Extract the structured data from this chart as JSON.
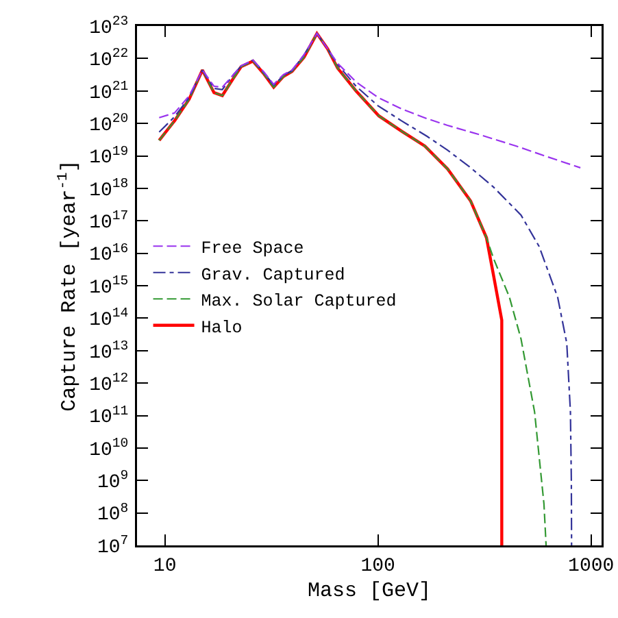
{
  "chart_data": {
    "type": "line",
    "xlabel": "Mass [GeV]",
    "ylabel": "Capture Rate [year$^{-1}$]",
    "log": "xy",
    "grid": false,
    "legend": "left",
    "xlim": [
      7.4,
      1120
    ],
    "ylim": [
      10000000.0,
      1e+23
    ],
    "xticks": [
      10,
      100,
      1000
    ],
    "yticks": [
      {
        "value": 10000000.0,
        "label": "10$^{7}$"
      },
      {
        "value": 100000000.0,
        "label": "10$^{8}$"
      },
      {
        "value": 1000000000.0,
        "label": "10$^{9}$"
      },
      {
        "value": 10000000000.0,
        "label": "10$^{10}$"
      },
      {
        "value": 100000000000.0,
        "label": "10$^{11}$"
      },
      {
        "value": 1000000000000.0,
        "label": "10$^{12}$"
      },
      {
        "value": 10000000000000.0,
        "label": "10$^{13}$"
      },
      {
        "value": 100000000000000.0,
        "label": "10$^{14}$"
      },
      {
        "value": 1000000000000000.0,
        "label": "10$^{15}$"
      },
      {
        "value": 1e+16,
        "label": "10$^{16}$"
      },
      {
        "value": 1e+17,
        "label": "10$^{17}$"
      },
      {
        "value": 1e+18,
        "label": "10$^{18}$"
      },
      {
        "value": 1e+19,
        "label": "10$^{19}$"
      },
      {
        "value": 1e+20,
        "label": "10$^{20}$"
      },
      {
        "value": 1e+21,
        "label": "10$^{21}$"
      },
      {
        "value": 1e+22,
        "label": "10$^{22}$"
      },
      {
        "value": 1e+23,
        "label": "10$^{23}$"
      }
    ],
    "series": [
      {
        "name": "Free Space",
        "color": "#9933ee",
        "line_style": "dashed",
        "x": [
          9.4,
          11.1,
          13,
          15,
          17,
          18.6,
          21,
          22.8,
          25.9,
          29,
          32.4,
          36,
          39.5,
          45,
          51.7,
          58,
          64.7,
          78.9,
          100,
          129,
          170,
          212,
          300,
          446,
          620,
          891
        ],
        "values": [
          1.5e+20,
          2.1e+20,
          7.1e+20,
          4.4e+21,
          1.4e+21,
          1.3e+21,
          3.2e+21,
          6e+21,
          8.9e+21,
          4e+21,
          1.6e+21,
          3.2e+21,
          4.4e+21,
          1.3e+22,
          5.9e+22,
          2e+22,
          7.1e+21,
          1.9e+21,
          6.3e+20,
          2.8e+20,
          1.4e+20,
          8.7e+19,
          4.5e+19,
          2e+19,
          9.5e+18,
          4.3e+18
        ]
      },
      {
        "name": "Grav. Captured",
        "color": "#333399",
        "line_style": "dotted",
        "x": [
          9.4,
          11.1,
          13,
          15,
          17,
          18.6,
          21,
          22.8,
          25.9,
          29,
          32.4,
          36,
          39.5,
          45,
          51.7,
          58,
          64.7,
          78.9,
          100,
          129,
          170,
          212,
          270,
          348,
          469,
          571,
          697,
          769,
          800,
          808,
          810
        ],
        "values": [
          5.4e+19,
          1.6e+20,
          6.3e+20,
          4.4e+21,
          1.2e+21,
          1.1e+21,
          3.2e+21,
          5.8e+21,
          8.9e+21,
          3.8e+21,
          1.5e+21,
          3e+21,
          4.2e+21,
          1.3e+22,
          5.9e+22,
          2e+22,
          6.5e+21,
          1.4e+21,
          3.5e+20,
          1.2e+20,
          4e+19,
          1.5e+19,
          4.5e+18,
          1.1e+18,
          1.5e+17,
          1.6e+16,
          440000000000000.0,
          17000000000000.0,
          130000000000.0,
          1000000000.0,
          10000000.0
        ]
      },
      {
        "name": "Max. Solar Captured",
        "color": "#339933",
        "line_style": "dashed",
        "x": [
          9.4,
          11.1,
          13,
          15,
          17,
          18.6,
          21,
          22.8,
          25.9,
          29,
          32.4,
          36,
          39.5,
          45,
          51.7,
          58,
          64.7,
          78.9,
          101,
          130,
          166,
          212,
          272,
          323,
          348,
          414,
          469,
          543,
          601,
          615
        ],
        "values": [
          3e+19,
          1.2e+20,
          5.6e+20,
          4.4e+21,
          8.9e+20,
          7.2e+20,
          2.5e+21,
          5.6e+21,
          8.3e+21,
          3.5e+21,
          1.3e+21,
          2.8e+21,
          4e+21,
          1.1e+22,
          5.9e+22,
          2e+22,
          5e+21,
          1e+21,
          1.7e+20,
          5.6e+19,
          2e+19,
          4e+18,
          4.1e+17,
          3e+16,
          7100000000000000.0,
          440000000000000.0,
          23000000000000.0,
          130000000000.0,
          190000000.0,
          10000000.0
        ]
      },
      {
        "name": "Halo",
        "color": "#ff0000",
        "line_style": "solid",
        "x": [
          9.4,
          11.1,
          13,
          15,
          17,
          18.6,
          21,
          22.8,
          25.9,
          29,
          32.4,
          36,
          39.5,
          45,
          51.7,
          58,
          64.7,
          78.9,
          101,
          130,
          166,
          212,
          272,
          323,
          348,
          381,
          381
        ],
        "values": [
          3e+19,
          1.2e+20,
          5.6e+20,
          4.4e+21,
          8.9e+20,
          7.2e+20,
          2.5e+21,
          5.6e+21,
          8.3e+21,
          3.5e+21,
          1.3e+21,
          2.8e+21,
          4e+21,
          1.1e+22,
          5.9e+22,
          2e+22,
          5e+21,
          1e+21,
          1.7e+20,
          5.6e+19,
          2e+19,
          4e+18,
          4.1e+17,
          3e+16,
          2200000000000000.0,
          87000000000000.0,
          10000000.0
        ]
      }
    ]
  }
}
